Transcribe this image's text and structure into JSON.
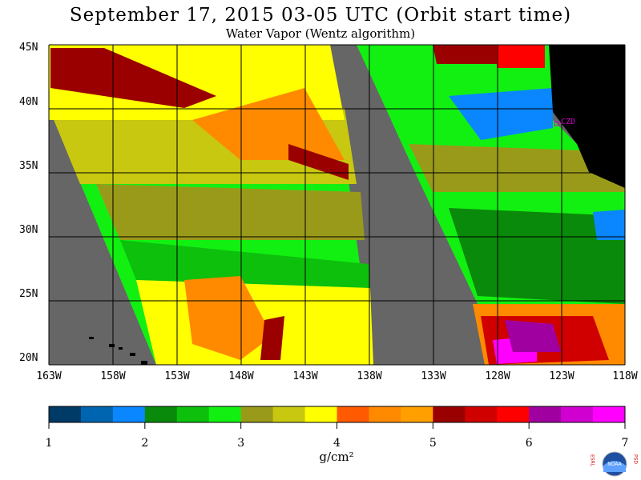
{
  "title": "September 17, 2015  03-05 UTC  (Orbit start time)",
  "subtitle": "Water Vapor (Wentz algorithm)",
  "lat_labels": [
    "45N",
    "40N",
    "35N",
    "30N",
    "25N",
    "20N"
  ],
  "lon_labels": [
    "163W",
    "158W",
    "153W",
    "148W",
    "143W",
    "138W",
    "133W",
    "128W",
    "123W",
    "118W"
  ],
  "colorbar": {
    "colors": [
      "#003a66",
      "#0065b0",
      "#0a86ff",
      "#0a8a0a",
      "#0cc00c",
      "#12f012",
      "#9a9a1a",
      "#c8c810",
      "#ffff00",
      "#ff5a00",
      "#ff8a00",
      "#ffa000",
      "#9a0000",
      "#d00000",
      "#ff0000",
      "#a000a0",
      "#d000d0",
      "#ff00ff"
    ],
    "ticks": [
      "1",
      "2",
      "3",
      "4",
      "5",
      "6",
      "7"
    ],
    "units": "g/cm²"
  },
  "station_label": "CZD",
  "logo_text": {
    "left": "ESRL",
    "right": "PSD",
    "center": "NOAA"
  }
}
